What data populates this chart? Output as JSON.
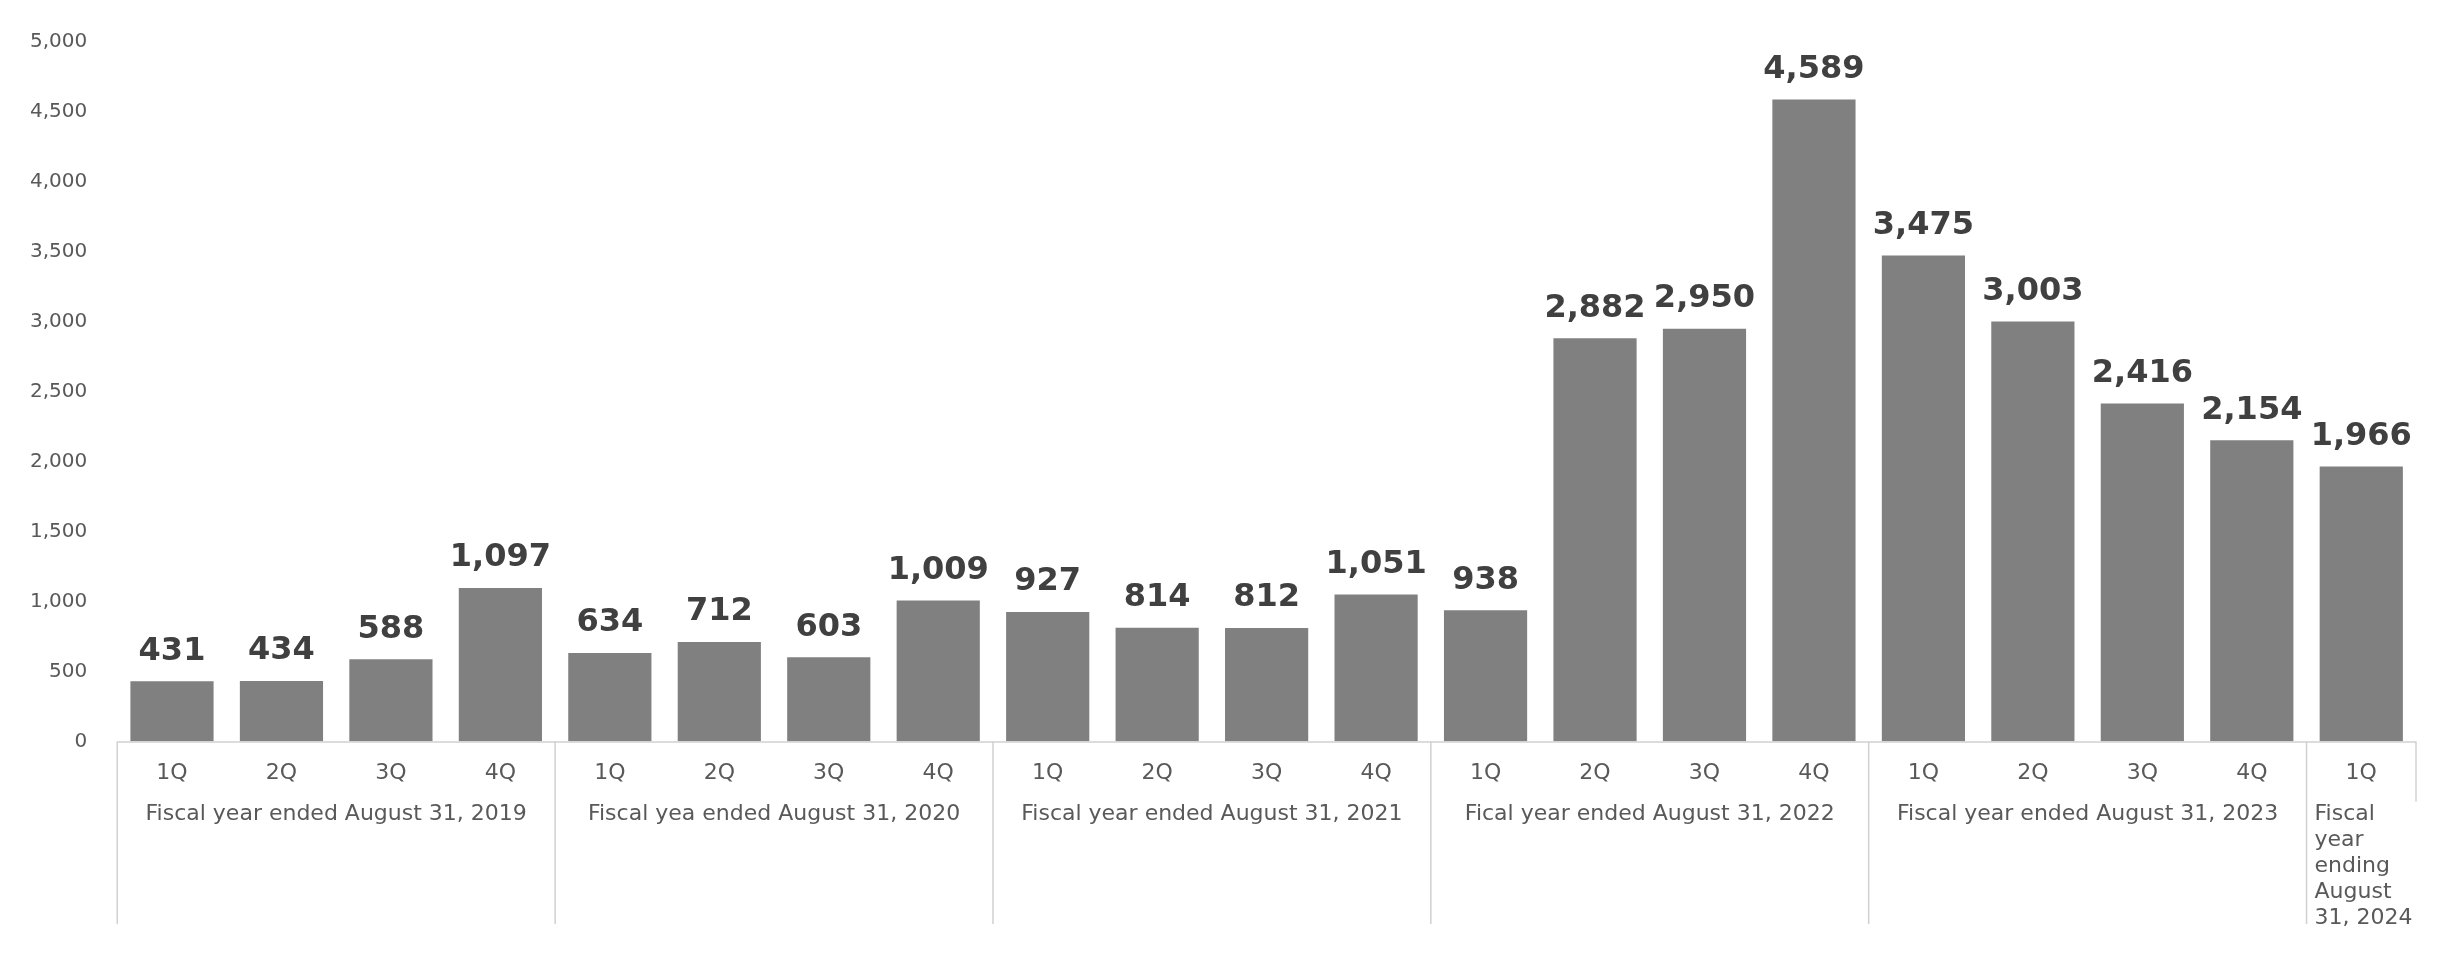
{
  "chart_data": {
    "type": "bar",
    "categories": [
      "1Q",
      "2Q",
      "3Q",
      "4Q",
      "1Q",
      "2Q",
      "3Q",
      "4Q",
      "1Q",
      "2Q",
      "3Q",
      "4Q",
      "1Q",
      "2Q",
      "3Q",
      "4Q",
      "1Q",
      "2Q",
      "3Q",
      "4Q",
      "1Q"
    ],
    "values": [
      431,
      434,
      588,
      1097,
      634,
      712,
      603,
      1009,
      927,
      814,
      812,
      1051,
      938,
      2882,
      2950,
      4589,
      3475,
      3003,
      2416,
      2154,
      1966
    ],
    "value_labels": [
      "431",
      "434",
      "588",
      "1,097",
      "634",
      "712",
      "603",
      "1,009",
      "927",
      "814",
      "812",
      "1,051",
      "938",
      "2,882",
      "2,950",
      "4,589",
      "3,475",
      "3,003",
      "2,416",
      "2,154",
      "1,966"
    ],
    "color": "#808080",
    "ylim": [
      0,
      5000
    ],
    "yticks": [
      {
        "value": 0,
        "label": "0"
      },
      {
        "value": 500,
        "label": "500"
      },
      {
        "value": 1000,
        "label": "1,000"
      },
      {
        "value": 1500,
        "label": "1,500"
      },
      {
        "value": 2000,
        "label": "2,000"
      },
      {
        "value": 2500,
        "label": "2,500"
      },
      {
        "value": 3000,
        "label": "3,000"
      },
      {
        "value": 3500,
        "label": "3,500"
      },
      {
        "value": 4000,
        "label": "4,000"
      },
      {
        "value": 4500,
        "label": "4,500"
      },
      {
        "value": 5000,
        "label": "5,000"
      }
    ],
    "grid": false,
    "legend": false,
    "annotations": [
      "Fiscal year ended August 31, 2019",
      "Fiscal yea ended August 31, 2020",
      "Fiscal year ended August 31, 2021",
      "Fical year ended August 31, 2022",
      "Fiscal year ended August 31, 2023",
      "Fiscal year ending August 31, 2024"
    ]
  }
}
